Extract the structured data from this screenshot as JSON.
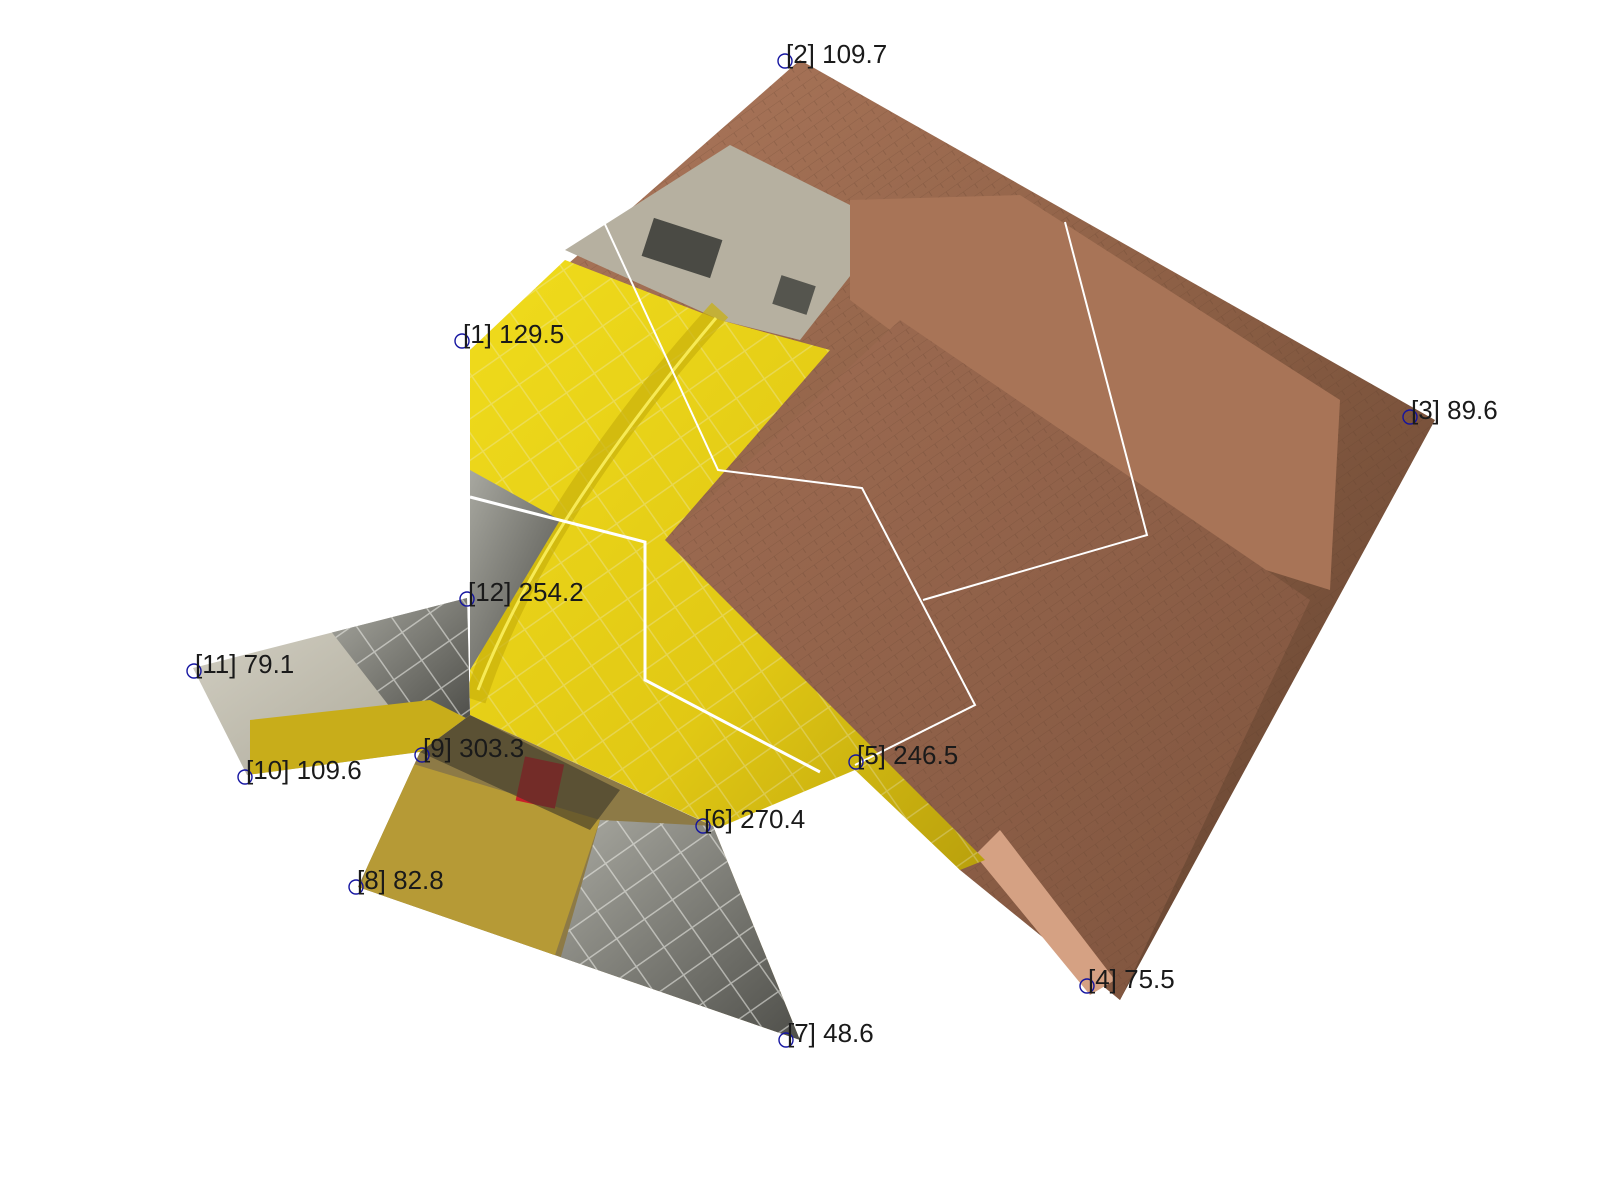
{
  "vertices": [
    {
      "id": "1",
      "value": "129.5",
      "label": "[1] 129.5"
    },
    {
      "id": "2",
      "value": "109.7",
      "label": "[2] 109.7"
    },
    {
      "id": "3",
      "value": "89.6",
      "label": "[3] 89.6"
    },
    {
      "id": "4",
      "value": "75.5",
      "label": "[4] 75.5"
    },
    {
      "id": "5",
      "value": "246.5",
      "label": "[5] 246.5"
    },
    {
      "id": "6",
      "value": "270.4",
      "label": "[6] 270.4"
    },
    {
      "id": "7",
      "value": "48.6",
      "label": "[7] 48.6"
    },
    {
      "id": "8",
      "value": "82.8",
      "label": "[8] 82.8"
    },
    {
      "id": "9",
      "value": "303.3",
      "label": "[9] 303.3"
    },
    {
      "id": "10",
      "value": "109.6",
      "label": "[10] 109.6"
    },
    {
      "id": "11",
      "value": "79.1",
      "label": "[11] 79.1"
    },
    {
      "id": "12",
      "value": "254.2",
      "label": "[12] 254.2"
    }
  ],
  "colors": {
    "brick_light": "#c08468",
    "brick_mid": "#9a6b50",
    "brick_dark": "#6e4a35",
    "yellow": "#e6d21a",
    "glass": "#7d7d78",
    "marker": "#1414a0"
  }
}
